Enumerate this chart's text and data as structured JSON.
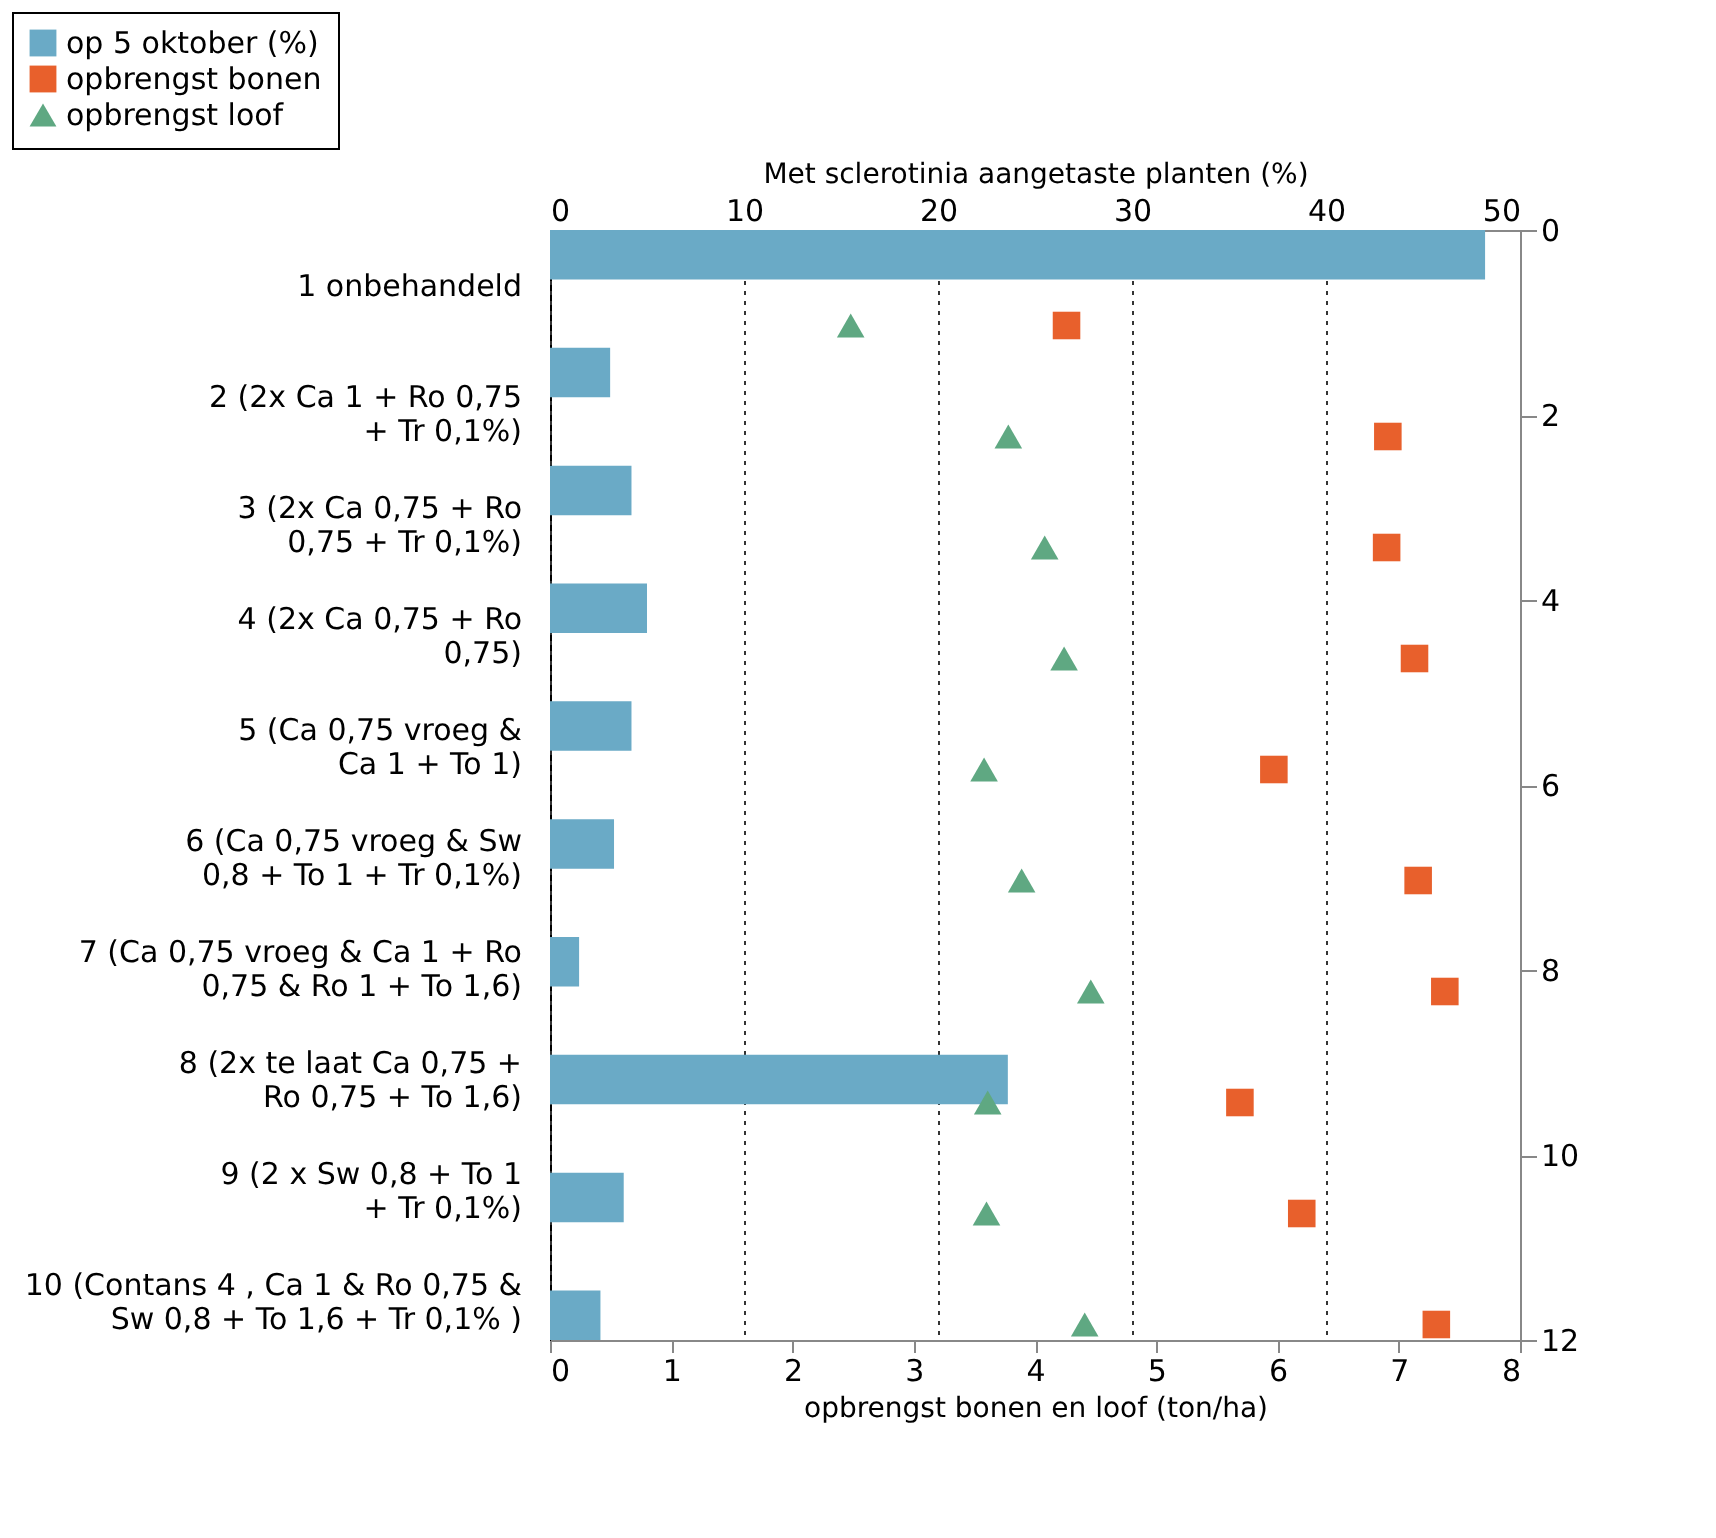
{
  "chart_data": {
    "type": "bar",
    "orientation": "horizontal",
    "categories": [
      "1 onbehandeld",
      "2 (2x Ca 1 + Ro 0,75 + Tr 0,1%)",
      "3 (2x Ca 0,75 + Ro 0,75 + Tr 0,1%)",
      "4 (2x Ca 0,75 + Ro 0,75)",
      "5 (Ca 0,75 vroeg & Ca 1 + To 1)",
      "6 (Ca 0,75 vroeg & Sw 0,8 + To 1 + Tr 0,1%)",
      "7 (Ca 0,75 vroeg & Ca 1 + Ro 0,75  & Ro 1 + To 1,6)",
      "8 (2x te laat Ca 0,75 + Ro 0,75 + To 1,6)",
      "9 (2 x Sw 0,8 + To 1 + Tr 0,1%)",
      "10 (Contans 4 , Ca 1 & Ro 0,75  & Sw 0,8 + To 1,6 + Tr 0,1% )"
    ],
    "xlabel": "opbrengst bonen en loof (ton/ha)",
    "x2label": "Met sclerotinia aangetaste planten (%)",
    "xlim": [
      0,
      8
    ],
    "xticks": [
      0,
      1,
      2,
      3,
      4,
      5,
      6,
      7,
      8
    ],
    "x2lim": [
      0,
      50
    ],
    "x2ticks": [
      0,
      10,
      20,
      30,
      40,
      50
    ],
    "y2lim": [
      12,
      0
    ],
    "y2ticks": [
      0,
      2,
      4,
      6,
      8,
      10,
      12
    ],
    "grid": "x",
    "legend": "top left",
    "series": [
      {
        "name": "op 5 oktober (%)",
        "axis": "x2",
        "color": "#6aaac6",
        "values": [
          48.2,
          3.1,
          4.2,
          5.0,
          4.2,
          3.3,
          1.5,
          23.6,
          3.8,
          2.6
        ]
      },
      {
        "name": "opbrengst bonen",
        "type": "scatter",
        "marker": "square",
        "color": "#e8602c",
        "values": [
          4.26,
          6.91,
          6.9,
          7.13,
          5.97,
          7.16,
          7.38,
          5.69,
          6.2,
          7.31
        ]
      },
      {
        "name": "opbrengst loof",
        "type": "scatter",
        "marker": "triangle",
        "color": "#5fa882",
        "values": [
          2.48,
          3.78,
          4.08,
          4.24,
          3.58,
          3.89,
          4.46,
          3.61,
          3.6,
          4.41
        ]
      }
    ]
  }
}
